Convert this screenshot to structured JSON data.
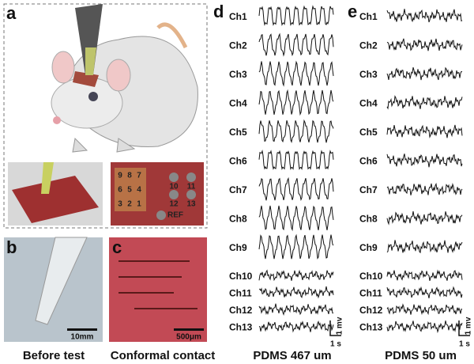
{
  "panels": {
    "a": {
      "label": "a",
      "electrodes_left": [
        "9",
        "8",
        "7",
        "6",
        "5",
        "4",
        "3",
        "2",
        "1"
      ],
      "electrodes_right": [
        "10",
        "11",
        "12",
        "13"
      ],
      "ref": "REF"
    },
    "b": {
      "label": "b",
      "scale": "10mm",
      "caption": "Before test"
    },
    "c": {
      "label": "c",
      "scale": "500μm",
      "caption": "Conformal contact"
    },
    "d": {
      "label": "d",
      "channels": [
        "Ch1",
        "Ch2",
        "Ch3",
        "Ch4",
        "Ch5",
        "Ch6",
        "Ch7",
        "Ch8",
        "Ch9",
        "Ch10",
        "Ch11",
        "Ch12",
        "Ch13"
      ],
      "scale_v": "1 mv",
      "scale_t": "1 s",
      "caption": "PDMS 467 um"
    },
    "e": {
      "label": "e",
      "channels": [
        "Ch1",
        "Ch2",
        "Ch3",
        "Ch4",
        "Ch5",
        "Ch6",
        "Ch7",
        "Ch8",
        "Ch9",
        "Ch10",
        "Ch11",
        "Ch12",
        "Ch13"
      ],
      "scale_v": "1 mv",
      "scale_t": "1 s",
      "caption": "PDMS 50 um"
    }
  }
}
